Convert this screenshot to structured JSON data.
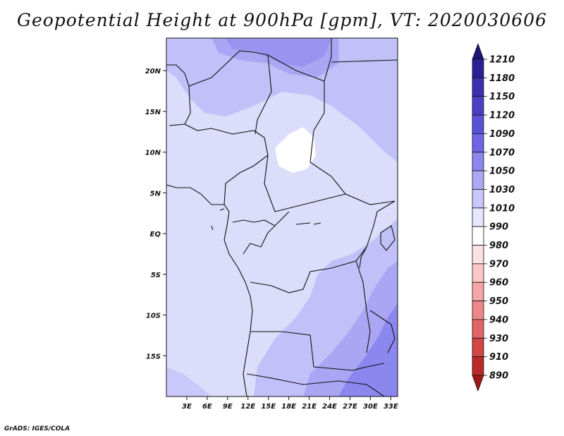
{
  "title": "Geopotential Height at 900hPa [gpm], VT: 2020030606",
  "credit": "GrADS: IGES/COLA",
  "map": {
    "lat_labels": [
      "20N",
      "15N",
      "10N",
      "5N",
      "EQ",
      "5S",
      "10S",
      "15S"
    ],
    "lon_labels": [
      "3E",
      "6E",
      "9E",
      "12E",
      "15E",
      "18E",
      "21E",
      "24E",
      "27E",
      "30E",
      "33E"
    ],
    "lon_range": [
      0,
      34
    ],
    "lat_range": [
      -20,
      24
    ]
  },
  "colorbar": {
    "levels": [
      "1210",
      "1180",
      "1150",
      "1120",
      "1090",
      "1070",
      "1050",
      "1030",
      "1010",
      "990",
      "980",
      "970",
      "960",
      "950",
      "940",
      "930",
      "910",
      "890"
    ],
    "colors": [
      "#1e1478",
      "#2a2096",
      "#3a30b0",
      "#4a40c4",
      "#5a52d6",
      "#6e66e6",
      "#8c86ef",
      "#aca8f5",
      "#cac8fa",
      "#e6e6fc",
      "#ffffff",
      "#fde0e0",
      "#fbc6c6",
      "#f5a6a6",
      "#ee8888",
      "#e26666",
      "#d24646",
      "#bb2a2a",
      "#a01818"
    ]
  }
}
